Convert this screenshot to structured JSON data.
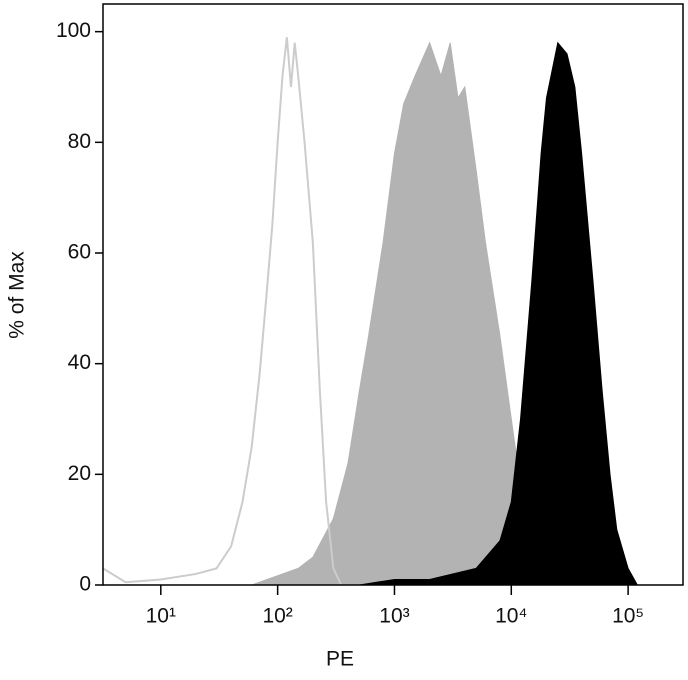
{
  "chart_data": {
    "type": "histogram-overlay",
    "x_label": "PE",
    "y_label": "% of Max",
    "xscale": "log",
    "xlim": [
      3.2,
      295000
    ],
    "ylim": [
      0,
      105
    ],
    "xticks": [
      {
        "value": 10,
        "label": "10¹"
      },
      {
        "value": 100,
        "label": "10²"
      },
      {
        "value": 1000,
        "label": "10³"
      },
      {
        "value": 10000,
        "label": "10⁴"
      },
      {
        "value": 100000,
        "label": "10⁵"
      }
    ],
    "yticks": [
      0,
      20,
      40,
      60,
      80,
      100
    ],
    "series": [
      {
        "color": "#b3b3b3",
        "style": "filled",
        "x": [
          60,
          150,
          200,
          300,
          400,
          500,
          600,
          800,
          1000,
          1200,
          1500,
          2000,
          2500,
          3000,
          3500,
          4000,
          5000,
          6000,
          8000,
          10000,
          12000,
          15000,
          20000,
          30000
        ],
        "values": [
          0,
          3,
          5,
          12,
          22,
          35,
          45,
          62,
          78,
          87,
          92,
          98,
          92,
          98,
          88,
          90,
          75,
          62,
          45,
          30,
          18,
          8,
          2,
          0
        ]
      },
      {
        "color": "#000000",
        "style": "filled",
        "x": [
          500,
          1000,
          2000,
          5000,
          8000,
          10000,
          12000,
          15000,
          18000,
          20000,
          25000,
          30000,
          35000,
          40000,
          50000,
          60000,
          70000,
          80000,
          100000,
          120000
        ],
        "values": [
          0,
          1,
          1,
          3,
          8,
          15,
          30,
          55,
          78,
          88,
          98,
          96,
          90,
          78,
          55,
          35,
          20,
          10,
          3,
          0
        ]
      },
      {
        "color": "#cccccc",
        "style": "outline",
        "x": [
          3.2,
          5,
          10,
          20,
          30,
          40,
          50,
          60,
          70,
          80,
          90,
          100,
          110,
          120,
          130,
          140,
          150,
          170,
          200,
          230,
          260,
          300,
          350
        ],
        "values": [
          3,
          0.5,
          1,
          2,
          3,
          7,
          15,
          25,
          38,
          52,
          65,
          80,
          92,
          99,
          90,
          98,
          92,
          80,
          62,
          35,
          15,
          3,
          0
        ]
      }
    ]
  }
}
